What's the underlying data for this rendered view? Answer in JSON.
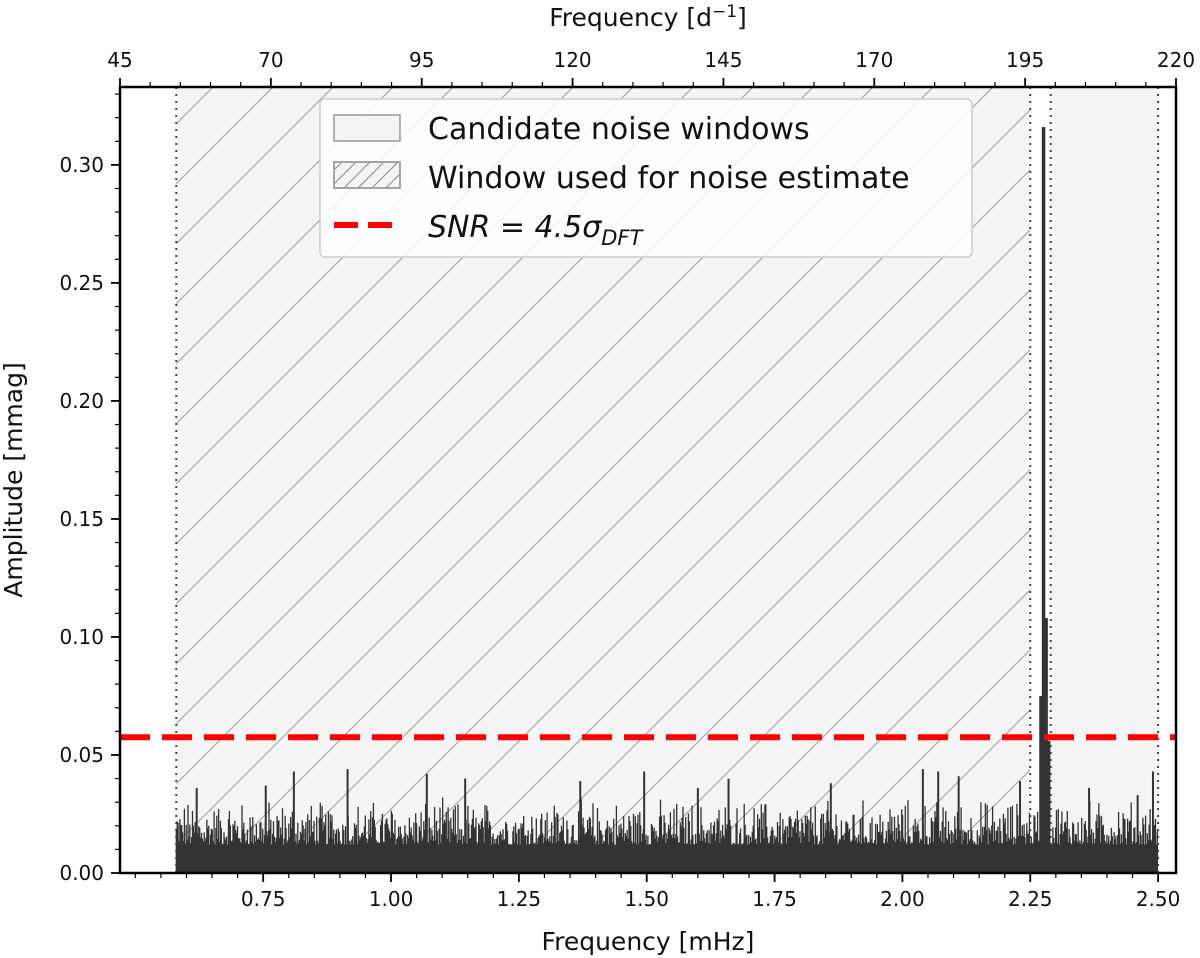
{
  "chart_data": {
    "type": "line",
    "xlabel": "Frequency [mHz]",
    "ylabel": "Amplitude [mmag]",
    "top_xlabel": "Frequency [d⁻¹]",
    "xlim": [
      0.47,
      2.535
    ],
    "ylim": [
      0.0,
      0.333
    ],
    "top_xlim": [
      45,
      220
    ],
    "x_ticks": [
      "0.75",
      "1.00",
      "1.25",
      "1.50",
      "1.75",
      "2.00",
      "2.25",
      "2.50"
    ],
    "y_ticks": [
      "0.00",
      "0.05",
      "0.10",
      "0.15",
      "0.20",
      "0.25",
      "0.30"
    ],
    "top_x_ticks": [
      "45",
      "70",
      "95",
      "120",
      "145",
      "170",
      "195",
      "220"
    ],
    "grid": false,
    "legend_position": "top-center",
    "legend": [
      {
        "label": "Candidate noise windows",
        "style": "plain-box"
      },
      {
        "label": "Window used for noise estimate",
        "style": "hatched-box"
      },
      {
        "label_main": "SNR = 4.5σ",
        "label_sub": "DFT",
        "style": "red-dashed-line"
      }
    ],
    "noise_windows": [
      {
        "x_start": 0.58,
        "x_end": 2.25,
        "hatched": true
      },
      {
        "x_start": 2.29,
        "x_end": 2.5,
        "hatched": false
      }
    ],
    "window_boundaries": [
      0.58,
      2.25,
      2.29,
      2.5
    ],
    "threshold": {
      "y": 0.0575,
      "color": "#ff0000",
      "style": "dashed"
    },
    "series": [
      {
        "kind": "noise",
        "x_range": [
          0.58,
          2.5
        ],
        "typical_level": [
          0.012,
          0.03
        ],
        "spikes": [
          {
            "x": 0.62,
            "y": 0.036
          },
          {
            "x": 0.755,
            "y": 0.037
          },
          {
            "x": 0.81,
            "y": 0.043
          },
          {
            "x": 0.915,
            "y": 0.044
          },
          {
            "x": 1.07,
            "y": 0.042
          },
          {
            "x": 1.145,
            "y": 0.04
          },
          {
            "x": 1.37,
            "y": 0.039
          },
          {
            "x": 1.495,
            "y": 0.043
          },
          {
            "x": 1.6,
            "y": 0.036
          },
          {
            "x": 1.66,
            "y": 0.04
          },
          {
            "x": 1.86,
            "y": 0.038
          },
          {
            "x": 2.04,
            "y": 0.044
          },
          {
            "x": 2.07,
            "y": 0.043
          },
          {
            "x": 2.11,
            "y": 0.041
          },
          {
            "x": 2.23,
            "y": 0.039
          },
          {
            "x": 2.365,
            "y": 0.036
          },
          {
            "x": 2.46,
            "y": 0.033
          },
          {
            "x": 2.49,
            "y": 0.043
          }
        ]
      },
      {
        "kind": "peaks",
        "points": [
          {
            "x": 2.276,
            "y": 0.316
          },
          {
            "x": 2.281,
            "y": 0.108
          },
          {
            "x": 2.271,
            "y": 0.075
          },
          {
            "x": 2.286,
            "y": 0.056
          }
        ]
      }
    ],
    "colors": {
      "trace": "#333333",
      "threshold": "#ff0000",
      "window_fill": "#f4f4f4",
      "hatch": "#aaaaaa",
      "boundary": "#444444"
    }
  }
}
